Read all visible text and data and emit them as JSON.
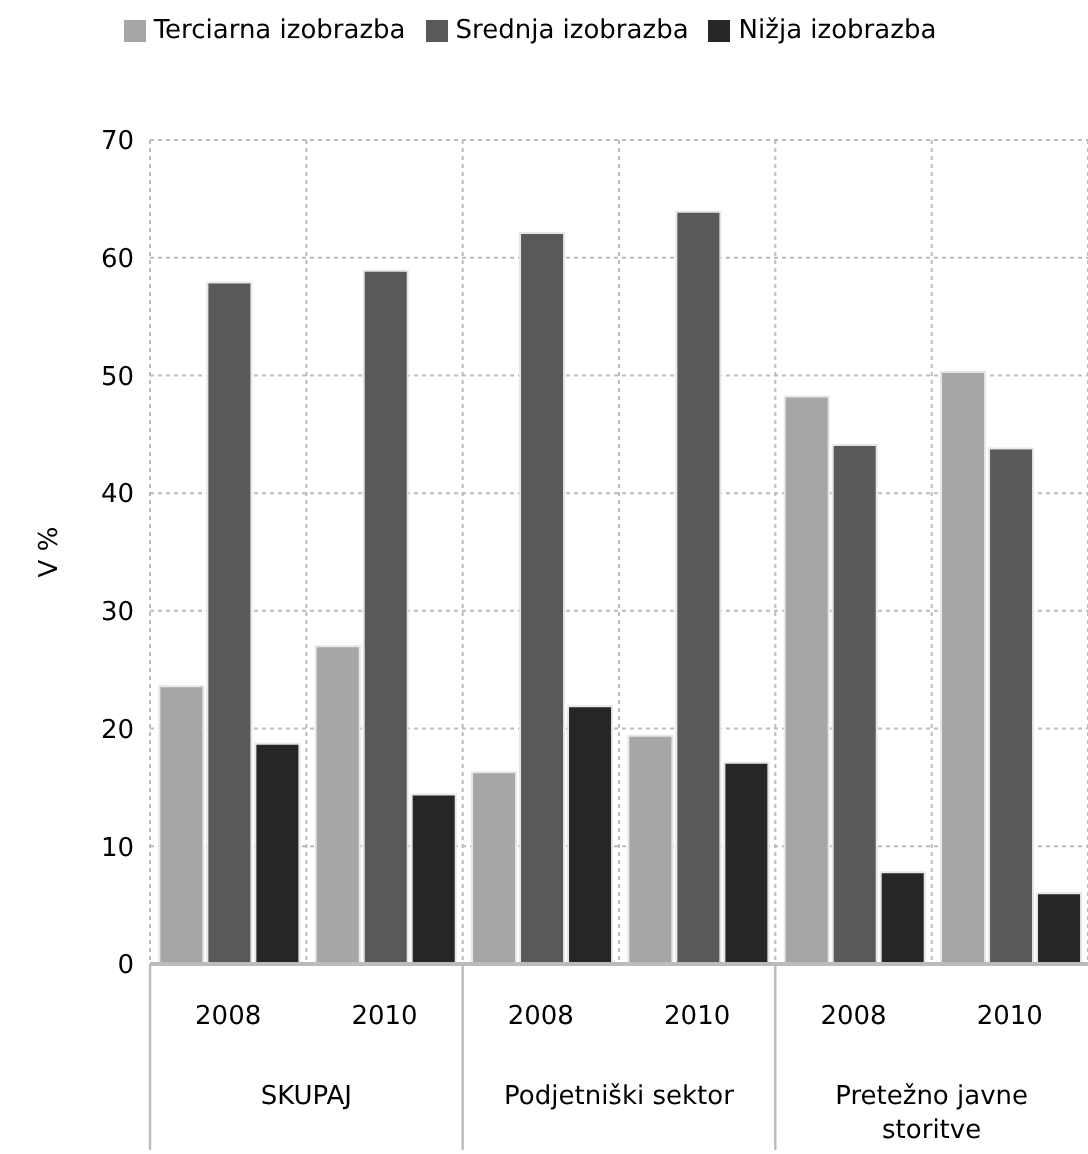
{
  "chart_data": {
    "type": "bar",
    "ylabel": "V %",
    "categories": [
      "2008",
      "2010",
      "2008",
      "2010",
      "2008",
      "2010"
    ],
    "series": [
      {
        "name": "Terciarna izobrazba",
        "color": "#a6a6a6",
        "values": [
          23.6,
          27.0,
          16.3,
          19.4,
          48.2,
          50.3
        ]
      },
      {
        "name": "Srednja izobrazba",
        "color": "#595959",
        "values": [
          57.9,
          58.9,
          62.1,
          63.9,
          44.1,
          43.8
        ]
      },
      {
        "name": "Nižja izobrazba",
        "color": "#262626",
        "values": [
          18.7,
          14.4,
          21.9,
          17.1,
          7.8,
          6.0
        ]
      }
    ],
    "annotations": [
      "SKUPAJ",
      "Podjetniški sektor",
      "Pretežno javne storitve"
    ],
    "ylim": [
      0,
      70
    ],
    "yticks": [
      0,
      10,
      20,
      30,
      40,
      50,
      60,
      70
    ],
    "grid": true,
    "legend": "top"
  }
}
